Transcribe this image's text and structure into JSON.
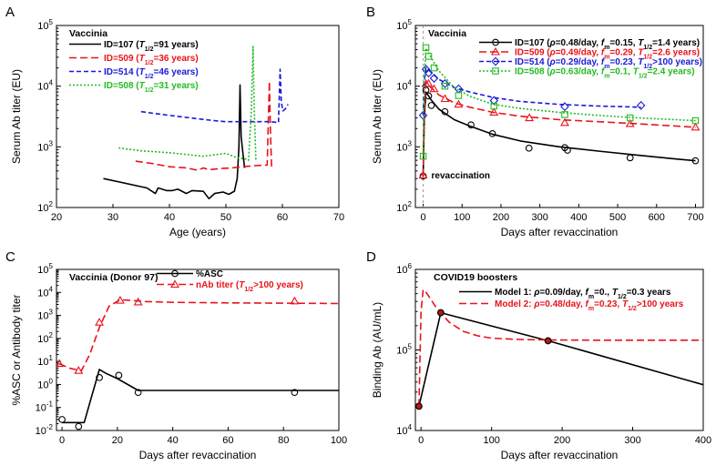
{
  "chart_data": [
    {
      "panel": "A",
      "type": "line",
      "title": "Vaccinia",
      "xlabel": "Age (years)",
      "ylabel": "Serum Ab titer (EU)",
      "xlim": [
        20,
        70
      ],
      "ylim_log10": [
        2,
        5
      ],
      "xticks": [
        "20",
        "30",
        "40",
        "50",
        "60",
        "70"
      ],
      "ytick_exponents": [
        "2",
        "3",
        "4",
        "5"
      ],
      "legend": [
        {
          "id": "107",
          "prefix": "ID=107 (",
          "tsym": "T",
          "tsub": "1/2",
          "suffix": "=91 years)",
          "color": "#000000",
          "dash": ""
        },
        {
          "id": "509",
          "prefix": "ID=509 (",
          "tsym": "T",
          "tsub": "1/2",
          "suffix": "=36 years)",
          "color": "#e8131b",
          "dash": "9,4"
        },
        {
          "id": "514",
          "prefix": "ID=514 (",
          "tsym": "T",
          "tsub": "1/2",
          "suffix": "=46 years)",
          "color": "#1a1ad6",
          "dash": "5,3"
        },
        {
          "id": "508",
          "prefix": "ID=508 (",
          "tsym": "T",
          "tsub": "1/2",
          "suffix": "=31 years)",
          "color": "#22bb22",
          "dash": "2,2"
        }
      ],
      "series": [
        {
          "id": "107",
          "color": "#000000",
          "dash": "",
          "x": [
            28.3,
            36,
            37.5,
            38,
            39.5,
            40.5,
            41.5,
            43,
            44,
            46,
            47,
            48,
            49.5,
            50.5,
            51.5,
            52,
            52.3,
            52.5,
            52.7,
            53,
            53.3
          ],
          "y": [
            300,
            210,
            170,
            210,
            190,
            190,
            200,
            170,
            190,
            185,
            140,
            170,
            180,
            165,
            185,
            300,
            1000,
            10500,
            1500,
            800,
            450
          ]
        },
        {
          "id": "509",
          "color": "#e8131b",
          "dash": "8,4",
          "x": [
            34,
            37,
            40,
            43,
            45,
            46,
            47,
            49,
            51,
            53,
            55,
            57.3,
            57.7,
            57.9,
            58.1
          ],
          "y": [
            580,
            530,
            470,
            450,
            410,
            450,
            420,
            440,
            450,
            470,
            490,
            500,
            12000,
            1500,
            450
          ]
        },
        {
          "id": "514",
          "color": "#1a1ad6",
          "dash": "5,3",
          "x": [
            35,
            40,
            45,
            48,
            50,
            52,
            54,
            56,
            58,
            59.3,
            59.6,
            59.8,
            60.1,
            60.5,
            61
          ],
          "y": [
            3800,
            3300,
            2900,
            2700,
            2600,
            2600,
            2600,
            2600,
            2600,
            2500,
            19000,
            5500,
            3900,
            4200,
            5000
          ]
        },
        {
          "id": "508",
          "color": "#22bb22",
          "dash": "2,2",
          "x": [
            31,
            35,
            40,
            44,
            46,
            48,
            50,
            52,
            53,
            53.5,
            54,
            54.5,
            54.8,
            55.0,
            55.3
          ],
          "y": [
            960,
            860,
            800,
            730,
            700,
            740,
            780,
            660,
            640,
            630,
            600,
            4000,
            45000,
            5000,
            600
          ]
        }
      ]
    },
    {
      "panel": "B",
      "type": "line+scatter",
      "title": "Vaccinia",
      "annotation": "revaccination",
      "xlabel": "Days after revaccination",
      "ylabel": "Serum Ab titer (EU)",
      "xlim": [
        -20,
        720
      ],
      "ylim_log10": [
        2,
        5
      ],
      "xticks": [
        "0",
        "100",
        "200",
        "300",
        "400",
        "500",
        "600",
        "700"
      ],
      "ytick_exponents": [
        "2",
        "3",
        "4",
        "5"
      ],
      "legend": [
        {
          "id": "107",
          "color": "#000000",
          "marker": "circle",
          "prefix": "ID=107 (",
          "rho": "0.48/day",
          "fm": "0.15",
          "t": "=1.4 years)"
        },
        {
          "id": "509",
          "color": "#e8131b",
          "marker": "triangle",
          "prefix": "ID=509 (",
          "rho": "0.49/day",
          "fm": "0.29",
          "t": "=2.6 years)"
        },
        {
          "id": "514",
          "color": "#1a1ad6",
          "marker": "diamond",
          "prefix": "ID=514 (",
          "rho": "0.29/day",
          "fm": "0.23",
          "t": ">100 years)"
        },
        {
          "id": "508",
          "color": "#22bb22",
          "marker": "square",
          "prefix": "ID=508 (",
          "rho": "0.63/day",
          "fm": "0.1",
          "t": "=2.4 years)"
        }
      ],
      "series": [
        {
          "id": "107",
          "color": "#000000",
          "dash": "",
          "marker": "circle",
          "fit_x": [
            0,
            3,
            7,
            12,
            20,
            40,
            80,
            120,
            180,
            250,
            350,
            450,
            550,
            650,
            700
          ],
          "fit_y": [
            320,
            3000,
            8000,
            7200,
            6000,
            4200,
            2800,
            2200,
            1600,
            1250,
            1000,
            850,
            730,
            630,
            590
          ],
          "x": [
            0,
            7,
            14,
            21,
            56,
            123,
            178,
            272,
            364,
            371,
            532,
            700
          ],
          "y": [
            330,
            8600,
            6900,
            4800,
            3800,
            2300,
            1650,
            950,
            970,
            880,
            660,
            590
          ]
        },
        {
          "id": "509",
          "color": "#e8131b",
          "dash": "8,4",
          "marker": "triangle",
          "fit_x": [
            0,
            3,
            7,
            12,
            20,
            40,
            80,
            120,
            180,
            250,
            350,
            450,
            550,
            650,
            700
          ],
          "fit_y": [
            330,
            4000,
            11500,
            11000,
            9500,
            7200,
            5300,
            4500,
            3700,
            3200,
            2800,
            2600,
            2400,
            2200,
            2100
          ],
          "x": [
            0,
            7,
            14,
            28,
            56,
            91,
            182,
            273,
            364,
            532,
            700
          ],
          "y": [
            340,
            11000,
            11000,
            9000,
            6200,
            5000,
            3700,
            3000,
            2500,
            2400,
            2100
          ]
        },
        {
          "id": "514",
          "color": "#1a1ad6",
          "dash": "5,3",
          "marker": "diamond",
          "fit_x": [
            0,
            3,
            7,
            12,
            20,
            40,
            80,
            120,
            180,
            250,
            350,
            450,
            560
          ],
          "fit_y": [
            3300,
            12000,
            20000,
            19000,
            17000,
            13000,
            9500,
            8000,
            6500,
            5600,
            5000,
            4700,
            4500
          ],
          "x": [
            0,
            7,
            14,
            28,
            56,
            91,
            182,
            364,
            560
          ],
          "y": [
            3300,
            19000,
            16500,
            13500,
            11000,
            9000,
            5800,
            4600,
            4800
          ]
        },
        {
          "id": "508",
          "color": "#22bb22",
          "dash": "2,2",
          "marker": "square",
          "fit_x": [
            0,
            3,
            7,
            12,
            20,
            40,
            80,
            120,
            180,
            250,
            350,
            450,
            550,
            650,
            700
          ],
          "fit_y": [
            700,
            15000,
            42000,
            38000,
            30000,
            18000,
            9500,
            6800,
            5000,
            4300,
            3700,
            3300,
            3000,
            2800,
            2700
          ],
          "x": [
            0,
            7,
            14,
            28,
            56,
            91,
            182,
            364,
            532,
            700
          ],
          "y": [
            700,
            43000,
            31000,
            20000,
            10000,
            7000,
            4700,
            3400,
            3000,
            2700
          ]
        }
      ]
    },
    {
      "panel": "C",
      "type": "line+scatter",
      "title": "Vaccinia (Donor 97)",
      "xlabel": "Days after revaccination",
      "ylabel": "%ASC or Antibody titer",
      "xlim": [
        -2,
        100
      ],
      "ylim_log10": [
        -2,
        5
      ],
      "xticks": [
        "0",
        "20",
        "40",
        "60",
        "80",
        "100"
      ],
      "ytick_exponents": [
        "-2",
        "-1",
        "0",
        "1",
        "2",
        "3",
        "4",
        "5"
      ],
      "legend": [
        {
          "id": "asc",
          "text": "%ASC",
          "color": "#000000",
          "marker": "circle"
        },
        {
          "id": "nab",
          "prefix": "nAb titer (",
          "tsym": "T",
          "tsub": "1/2",
          "suffix": ">100 years)",
          "color": "#e8131b",
          "marker": "triangle"
        }
      ],
      "series": [
        {
          "id": "asc",
          "color": "#000000",
          "dash": "",
          "marker": "circle",
          "fit_x": [
            0,
            8,
            13.5,
            16,
            20,
            27.5,
            100
          ],
          "fit_y": [
            0.022,
            0.022,
            4.5,
            3.0,
            1.8,
            0.55,
            0.55
          ],
          "x": [
            0,
            6,
            13.5,
            20.5,
            27.5,
            84
          ],
          "y": [
            0.03,
            0.015,
            2.0,
            2.5,
            0.45,
            0.45
          ]
        },
        {
          "id": "nab",
          "color": "#e8131b",
          "dash": "8,4",
          "marker": "triangle",
          "fit_x": [
            -1,
            3,
            7,
            10,
            13.5,
            17,
            21,
            25,
            30,
            40,
            60,
            80,
            100
          ],
          "fit_y": [
            8,
            5,
            4,
            20,
            300,
            2500,
            4800,
            4500,
            4000,
            3700,
            3500,
            3400,
            3300
          ],
          "x": [
            -1,
            6,
            13.5,
            21,
            27.5,
            84
          ],
          "y": [
            8,
            4,
            500,
            4500,
            3800,
            4200
          ]
        }
      ]
    },
    {
      "panel": "D",
      "type": "line+scatter",
      "title": "COVID19 boosters",
      "xlabel": "Days after revaccination",
      "ylabel": "Binding Ab (AU/mL)",
      "xlim": [
        -8,
        400
      ],
      "ylim_log10": [
        4,
        6
      ],
      "xticks": [
        "0",
        "100",
        "200",
        "300",
        "400"
      ],
      "ytick_exponents": [
        "4",
        "5",
        "6"
      ],
      "legend": [
        {
          "id": "m1",
          "prefix": "Model 1: ",
          "rho": "0.09/day",
          "fm": "0.",
          "t": "=0.3 years",
          "color": "#000000",
          "dash": ""
        },
        {
          "id": "m2",
          "prefix": "Model 2: ",
          "rho": "0.48/day",
          "fm": "0.23",
          "t": ">100 years",
          "color": "#e8131b",
          "dash": "8,4"
        }
      ],
      "series": [
        {
          "id": "m1",
          "color": "#000000",
          "dash": "",
          "fit_x": [
            -3,
            28,
            180,
            400
          ],
          "fit_y": [
            20000,
            290000,
            130000,
            37000
          ]
        },
        {
          "id": "m2",
          "color": "#e8131b",
          "dash": "8,4",
          "fit_x": [
            -3,
            0,
            3,
            7,
            12,
            20,
            28,
            40,
            60,
            80,
            100,
            140,
            180,
            250,
            400
          ],
          "fit_y": [
            20000,
            300000,
            560000,
            520000,
            450000,
            350000,
            290000,
            220000,
            170000,
            150000,
            140000,
            135000,
            133000,
            132000,
            132000
          ]
        },
        {
          "id": "points",
          "color": "#000000",
          "marker": "circle",
          "x": [
            -3,
            28,
            180
          ],
          "y": [
            20000,
            290000,
            130000
          ]
        }
      ]
    }
  ]
}
